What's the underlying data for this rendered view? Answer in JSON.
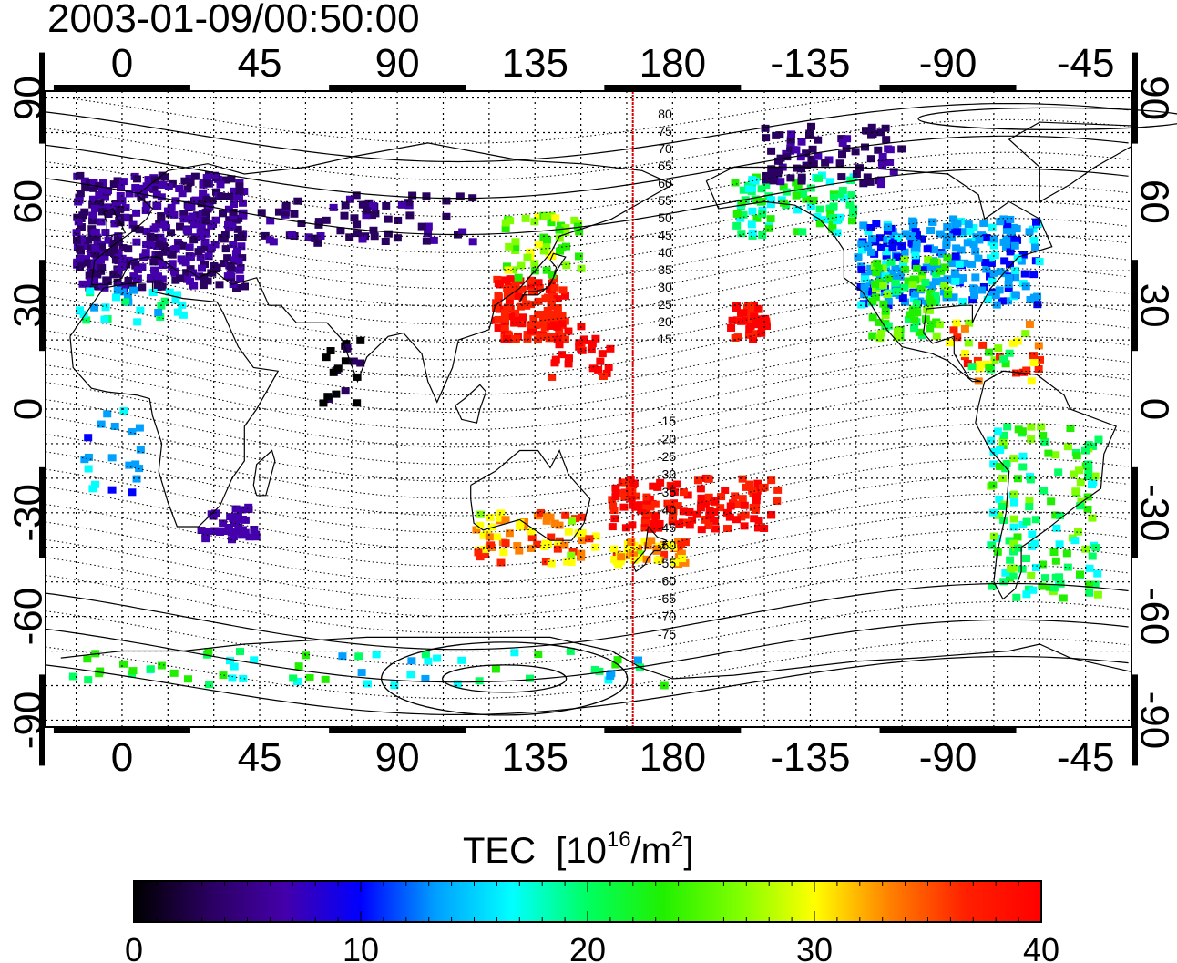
{
  "header": {
    "timestamp": "2003-01-09/00:50:00"
  },
  "map": {
    "lon_ticks_top": [
      "0",
      "45",
      "90",
      "135",
      "180",
      "-135",
      "-90",
      "-45"
    ],
    "lon_ticks_bottom": [
      "0",
      "45",
      "90",
      "135",
      "180",
      "-135",
      "-90",
      "-45"
    ],
    "lat_ticks": [
      "90",
      "60",
      "30",
      "0",
      "-30",
      "-60",
      "-90"
    ],
    "lon_tick_values": [
      0,
      45,
      90,
      135,
      180,
      225,
      270,
      315
    ],
    "lat_tick_values": [
      90,
      60,
      30,
      0,
      -30,
      -60,
      -90
    ],
    "lon_range": [
      -25,
      330
    ],
    "lat_range": [
      -92,
      92
    ],
    "grid": "dotted",
    "marker_longitude": 167,
    "marker_color": "#e00000",
    "contour_labels_north": [
      "80",
      "75",
      "70",
      "65",
      "60",
      "55",
      "50",
      "45",
      "40",
      "35",
      "30",
      "25",
      "20",
      "15"
    ],
    "contour_labels_south": [
      "-15",
      "-20",
      "-25",
      "-30",
      "-35",
      "-40",
      "-45",
      "-50",
      "-55",
      "-60",
      "-65",
      "-70",
      "-75"
    ]
  },
  "colorbar": {
    "label": "TEC",
    "unit_main": "[10",
    "unit_exp": "16",
    "unit_mid": "/m",
    "unit_exp2": "2",
    "unit_close": "]",
    "tick_labels": [
      "0",
      "10",
      "20",
      "30",
      "40"
    ],
    "range": [
      0,
      40
    ],
    "colors": [
      "#000000",
      "#2a0060",
      "#4400aa",
      "#0000ff",
      "#00a0ff",
      "#00ffff",
      "#00ff60",
      "#20f000",
      "#80ff00",
      "#ffff00",
      "#ff8000",
      "#ff2000",
      "#ff0000"
    ]
  }
}
